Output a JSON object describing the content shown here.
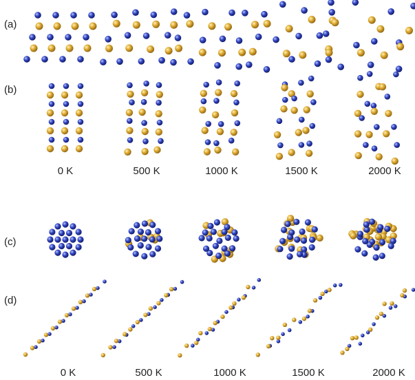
{
  "figure": {
    "panel_labels": [
      "(a)",
      "(b)",
      "(c)",
      "(d)"
    ],
    "temperatures_top": [
      "0 K",
      "500 K",
      "1000 K",
      "1500 K",
      "2000 K"
    ],
    "temperatures_bottom": [
      "0 K",
      "500 K",
      "1000 K",
      "1500 K",
      "2000 K"
    ],
    "atom_colors": {
      "gold": "#d4a12c",
      "blue": "#2b3fae"
    },
    "disorder_levels": [
      0,
      0.25,
      0.45,
      0.7,
      0.95
    ]
  }
}
